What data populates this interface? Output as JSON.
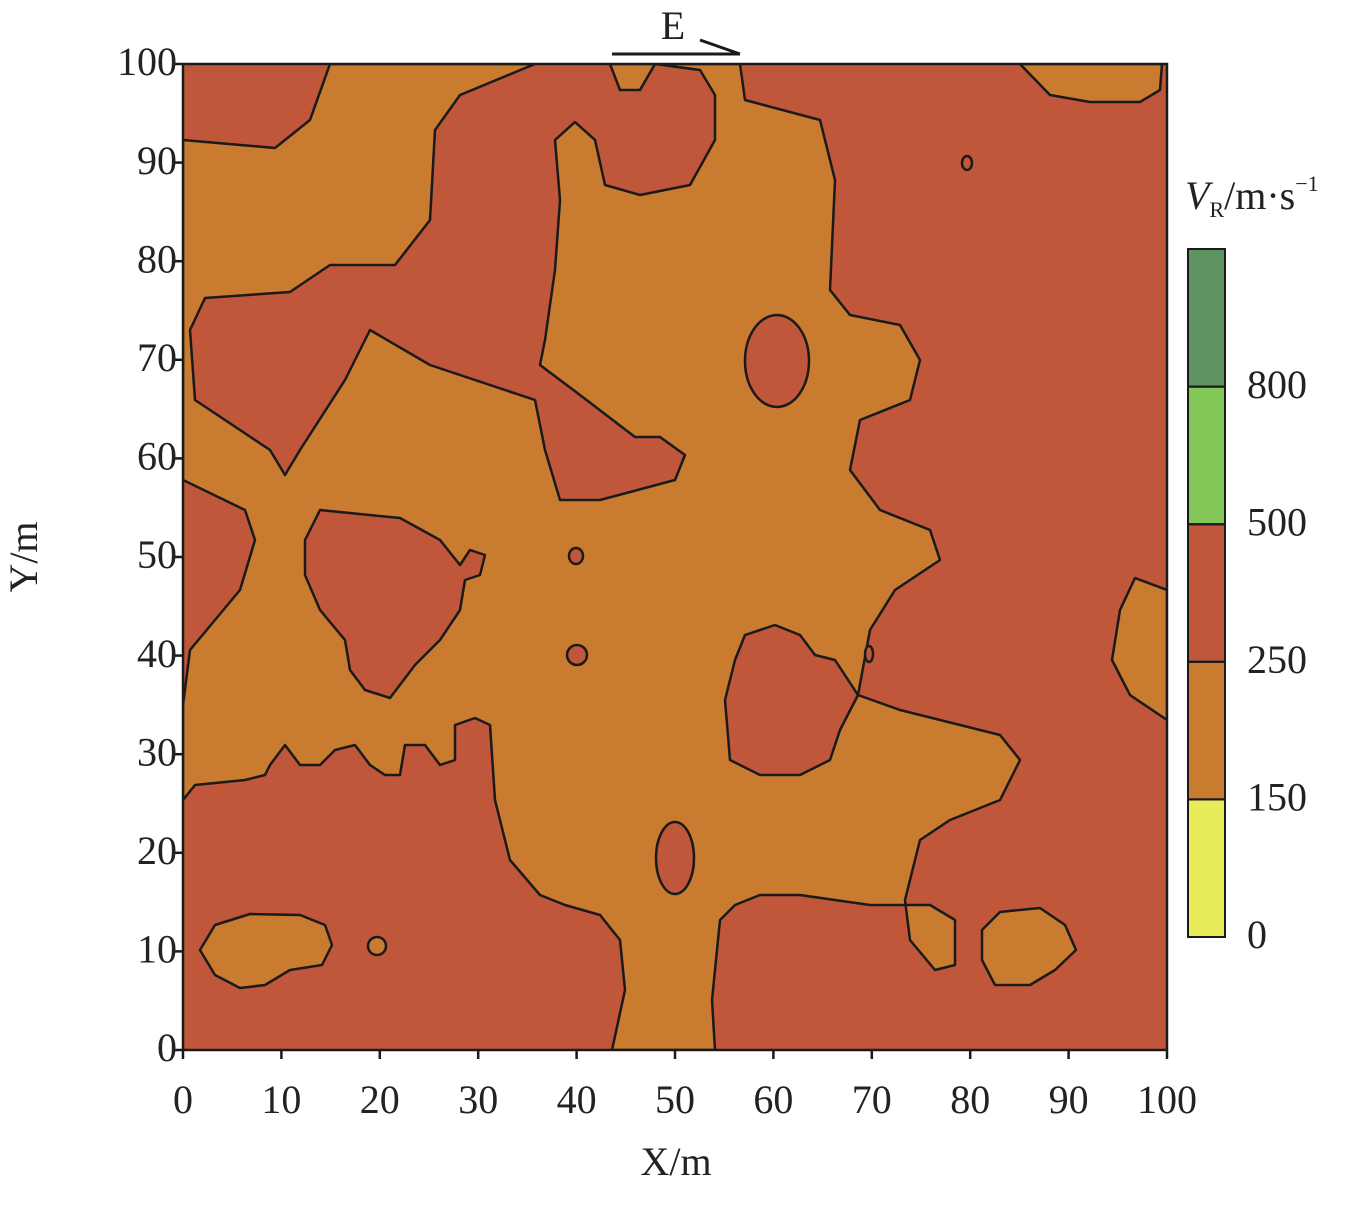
{
  "chart_data": {
    "type": "contour",
    "xlabel": "X/m",
    "ylabel": "Y/m",
    "annotation": "E",
    "xlim": [
      0,
      100
    ],
    "xticks": [
      0,
      10,
      20,
      30,
      40,
      50,
      60,
      70,
      80,
      90,
      100
    ],
    "ylim": [
      0,
      100
    ],
    "yticks": [
      0,
      10,
      20,
      30,
      40,
      50,
      60,
      70,
      80,
      90,
      100
    ],
    "colorbar": {
      "title": {
        "symbol": "V",
        "subscript": "R",
        "unit": "/m·s",
        "exponent": "−1"
      },
      "levels": [
        0,
        150,
        250,
        500,
        800
      ],
      "colors": [
        "#e8ec5a",
        "#c97c2f",
        "#c0573a",
        "#84c85a",
        "#5e9462"
      ]
    }
  }
}
